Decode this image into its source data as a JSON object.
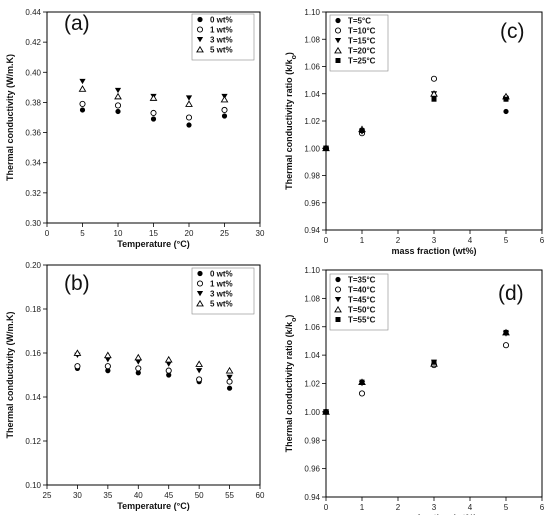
{
  "chart_data": [
    {
      "type": "scatter",
      "panel_label": "(a)",
      "xlabel": "Temperature (°C)",
      "ylabel": "Thermal conductivity (W/m.K)",
      "xlim": [
        0,
        30
      ],
      "ylim": [
        0.3,
        0.44
      ],
      "xticks": [
        "0",
        "5",
        "10",
        "15",
        "20",
        "25",
        "30"
      ],
      "yticks": [
        "0.30",
        "0.32",
        "0.34",
        "0.36",
        "0.38",
        "0.40",
        "0.42",
        "0.44"
      ],
      "legend_position": "top-right",
      "x": [
        5,
        10,
        15,
        20,
        25
      ],
      "series": [
        {
          "name": "0 wt%",
          "marker": "filled-circle",
          "values": [
            0.375,
            0.374,
            0.369,
            0.365,
            0.371
          ]
        },
        {
          "name": "1 wt%",
          "marker": "open-circle",
          "values": [
            0.379,
            0.378,
            0.373,
            0.37,
            0.375
          ]
        },
        {
          "name": "3 wt%",
          "marker": "filled-triangle-down",
          "values": [
            0.394,
            0.388,
            0.384,
            0.383,
            0.384
          ]
        },
        {
          "name": "5 wt%",
          "marker": "open-triangle-up",
          "values": [
            0.389,
            0.384,
            0.383,
            0.379,
            0.382
          ]
        }
      ]
    },
    {
      "type": "scatter",
      "panel_label": "(b)",
      "xlabel": "Temperature (°C)",
      "ylabel": "Thermal conductivity (W/m.K)",
      "xlim": [
        25,
        60
      ],
      "ylim": [
        0.1,
        0.2
      ],
      "xticks": [
        "25",
        "30",
        "35",
        "40",
        "45",
        "50",
        "55",
        "60"
      ],
      "yticks": [
        "0.10",
        "0.12",
        "0.14",
        "0.16",
        "0.18",
        "0.20"
      ],
      "legend_position": "top-right",
      "x": [
        30,
        35,
        40,
        45,
        50,
        55
      ],
      "series": [
        {
          "name": "0 wt%",
          "marker": "filled-circle",
          "values": [
            0.153,
            0.152,
            0.151,
            0.15,
            0.147,
            0.144
          ]
        },
        {
          "name": "1 wt%",
          "marker": "open-circle",
          "values": [
            0.154,
            0.154,
            0.153,
            0.152,
            0.148,
            0.147
          ]
        },
        {
          "name": "3 wt%",
          "marker": "filled-triangle-down",
          "values": [
            0.159,
            0.157,
            0.156,
            0.155,
            0.152,
            0.149
          ]
        },
        {
          "name": "5 wt%",
          "marker": "open-triangle-up",
          "values": [
            0.16,
            0.159,
            0.158,
            0.157,
            0.155,
            0.152
          ]
        }
      ]
    },
    {
      "type": "scatter",
      "panel_label": "(c)",
      "xlabel": "mass fraction (wt%)",
      "ylabel": "Thermal conductivity ratio (k/k",
      "ylabel_sub": "o",
      "ylabel_end": ")",
      "xlim": [
        0,
        6
      ],
      "ylim": [
        0.94,
        1.1
      ],
      "xticks": [
        "0",
        "1",
        "2",
        "3",
        "4",
        "5",
        "6"
      ],
      "yticks": [
        "0.94",
        "0.96",
        "0.98",
        "1.00",
        "1.02",
        "1.04",
        "1.06",
        "1.08",
        "1.10"
      ],
      "legend_position": "top-left",
      "x": [
        0,
        1,
        3,
        5
      ],
      "series": [
        {
          "name": "T=5°C",
          "marker": "filled-circle",
          "values": [
            1.0,
            1.011,
            1.038,
            1.027
          ]
        },
        {
          "name": "T=10°C",
          "marker": "open-circle",
          "values": [
            1.0,
            1.011,
            1.051,
            1.037
          ]
        },
        {
          "name": "T=15°C",
          "marker": "filled-triangle-down",
          "values": [
            1.0,
            1.012,
            1.04,
            1.036
          ]
        },
        {
          "name": "T=20°C",
          "marker": "open-triangle-up",
          "values": [
            1.0,
            1.014,
            1.04,
            1.038
          ]
        },
        {
          "name": "T=25°C",
          "marker": "filled-square",
          "values": [
            1.0,
            1.013,
            1.036,
            1.036
          ]
        }
      ]
    },
    {
      "type": "scatter",
      "panel_label": "(d)",
      "xlabel": "mass fraction (wt%)",
      "ylabel": "Thermal conductivity ratio (k/k",
      "ylabel_sub": "o",
      "ylabel_end": ")",
      "xlim": [
        0,
        6
      ],
      "ylim": [
        0.94,
        1.1
      ],
      "xticks": [
        "0",
        "1",
        "2",
        "3",
        "4",
        "5",
        "6"
      ],
      "yticks": [
        "0.94",
        "0.96",
        "0.98",
        "1.00",
        "1.02",
        "1.04",
        "1.06",
        "1.08",
        "1.10"
      ],
      "legend_position": "top-left",
      "x": [
        0,
        1,
        3,
        5
      ],
      "series": [
        {
          "name": "T=35°C",
          "marker": "filled-circle",
          "values": [
            1.0,
            1.013,
            1.034,
            1.047
          ]
        },
        {
          "name": "T=40°C",
          "marker": "open-circle",
          "values": [
            1.0,
            1.013,
            1.033,
            1.047
          ]
        },
        {
          "name": "T=45°C",
          "marker": "filled-triangle-down",
          "values": [
            1.0,
            1.02,
            1.035,
            1.055
          ]
        },
        {
          "name": "T=50°C",
          "marker": "open-triangle-up",
          "values": [
            1.0,
            1.021,
            1.034,
            1.056
          ]
        },
        {
          "name": "T=55°C",
          "marker": "filled-square",
          "values": [
            1.0,
            1.021,
            1.035,
            1.056
          ]
        }
      ]
    }
  ]
}
